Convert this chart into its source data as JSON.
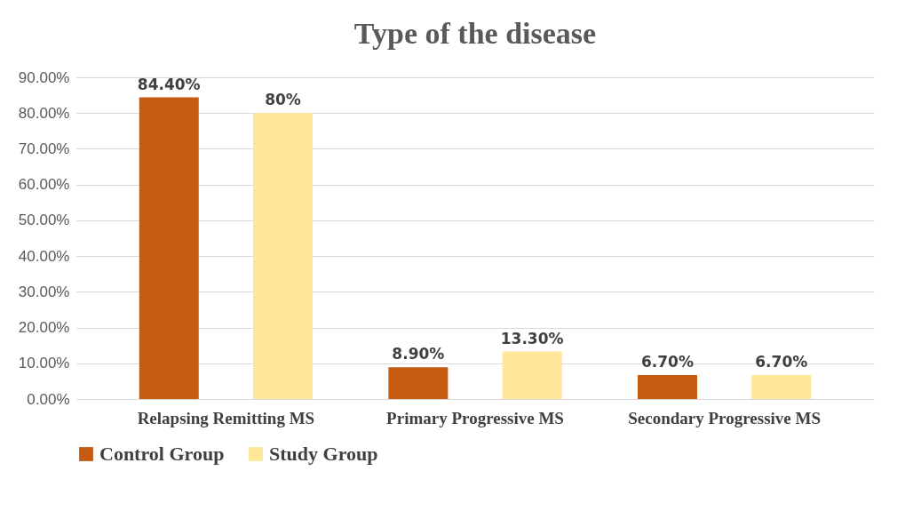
{
  "chart_data": {
    "type": "bar",
    "title": "Type of the disease",
    "categories": [
      "Relapsing Remitting MS",
      "Primary Progressive MS",
      "Secondary Progressive MS"
    ],
    "series": [
      {
        "name": "Control Group",
        "color": "#c55a11",
        "values": [
          84.4,
          8.9,
          6.7
        ],
        "value_labels": [
          "84.40%",
          "8.90%",
          "6.70%"
        ]
      },
      {
        "name": "Study Group",
        "color": "#ffe699",
        "values": [
          80,
          13.3,
          6.7
        ],
        "value_labels": [
          "80%",
          "13.30%",
          "6.70%"
        ]
      }
    ],
    "ylim": [
      0,
      90
    ],
    "yticks": [
      {
        "value": 0,
        "label": "0.00%"
      },
      {
        "value": 10,
        "label": "10.00%"
      },
      {
        "value": 20,
        "label": "20.00%"
      },
      {
        "value": 30,
        "label": "30.00%"
      },
      {
        "value": 40,
        "label": "40.00%"
      },
      {
        "value": 50,
        "label": "50.00%"
      },
      {
        "value": 60,
        "label": "60.00%"
      },
      {
        "value": 70,
        "label": "70.00%"
      },
      {
        "value": 80,
        "label": "80.00%"
      },
      {
        "value": 90,
        "label": "90.00%"
      }
    ],
    "grid": "y",
    "legend": "bottom"
  }
}
